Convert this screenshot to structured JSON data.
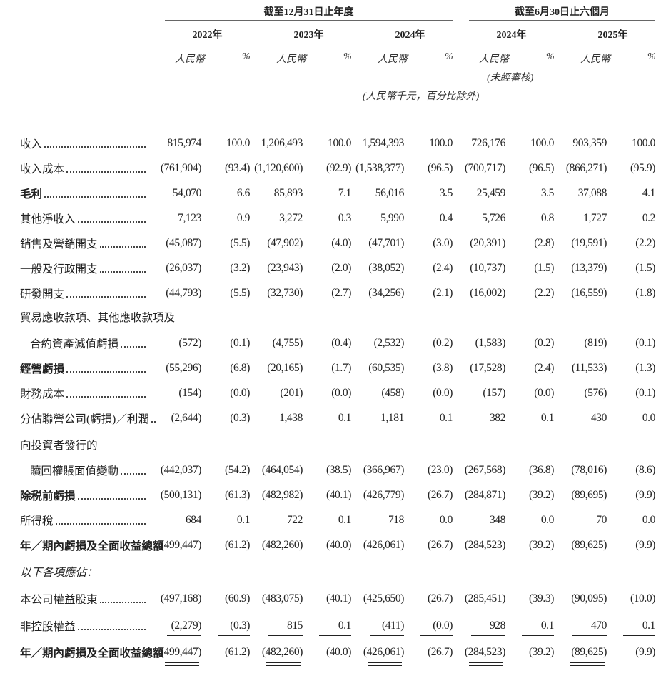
{
  "header": {
    "group_annual": "截至12月31日止年度",
    "group_interim": "截至6月30日止六個月",
    "years": [
      "2022年",
      "2023年",
      "2024年",
      "2024年",
      "2025年"
    ],
    "currency_label": "人民幣",
    "percent_label": "%",
    "unaudited_note": "(未經審核)",
    "unit_note": "(人民幣千元，百分比除外)"
  },
  "rows": [
    {
      "label": "收入",
      "values": [
        "815,974",
        "100.0",
        "1,206,493",
        "100.0",
        "1,594,393",
        "100.0",
        "726,176",
        "100.0",
        "903,359",
        "100.0"
      ]
    },
    {
      "label": "收入成本",
      "values": [
        "(761,904)",
        "(93.4)",
        "(1,120,600)",
        "(92.9)",
        "(1,538,377)",
        "(96.5)",
        "(700,717)",
        "(96.5)",
        "(866,271)",
        "(95.9)"
      ]
    },
    {
      "label": "毛利",
      "bold": true,
      "values": [
        "54,070",
        "6.6",
        "85,893",
        "7.1",
        "56,016",
        "3.5",
        "25,459",
        "3.5",
        "37,088",
        "4.1"
      ]
    },
    {
      "label": "其他淨收入",
      "values": [
        "7,123",
        "0.9",
        "3,272",
        "0.3",
        "5,990",
        "0.4",
        "5,726",
        "0.8",
        "1,727",
        "0.2"
      ]
    },
    {
      "label": "銷售及營銷開支",
      "values": [
        "(45,087)",
        "(5.5)",
        "(47,902)",
        "(4.0)",
        "(47,701)",
        "(3.0)",
        "(20,391)",
        "(2.8)",
        "(19,591)",
        "(2.2)"
      ]
    },
    {
      "label": "一般及行政開支",
      "values": [
        "(26,037)",
        "(3.2)",
        "(23,943)",
        "(2.0)",
        "(38,052)",
        "(2.4)",
        "(10,737)",
        "(1.5)",
        "(13,379)",
        "(1.5)"
      ]
    },
    {
      "label": "研發開支",
      "values": [
        "(44,793)",
        "(5.5)",
        "(32,730)",
        "(2.7)",
        "(34,256)",
        "(2.1)",
        "(16,002)",
        "(2.2)",
        "(16,559)",
        "(1.8)"
      ]
    },
    {
      "label": "貿易應收款項、其他應收款項及",
      "nolead": true,
      "values": []
    },
    {
      "label": "合約資產減值虧損",
      "indent": true,
      "values": [
        "(572)",
        "(0.1)",
        "(4,755)",
        "(0.4)",
        "(2,532)",
        "(0.2)",
        "(1,583)",
        "(0.2)",
        "(819)",
        "(0.1)"
      ]
    },
    {
      "label": "經營虧損",
      "bold": true,
      "values": [
        "(55,296)",
        "(6.8)",
        "(20,165)",
        "(1.7)",
        "(60,535)",
        "(3.8)",
        "(17,528)",
        "(2.4)",
        "(11,533)",
        "(1.3)"
      ]
    },
    {
      "label": "財務成本",
      "values": [
        "(154)",
        "(0.0)",
        "(201)",
        "(0.0)",
        "(458)",
        "(0.0)",
        "(157)",
        "(0.0)",
        "(576)",
        "(0.1)"
      ]
    },
    {
      "label": "分佔聯營公司(虧損)／利潤",
      "values": [
        "(2,644)",
        "(0.3)",
        "1,438",
        "0.1",
        "1,181",
        "0.1",
        "382",
        "0.1",
        "430",
        "0.0"
      ]
    },
    {
      "label": "向投資者發行的",
      "nolead": true,
      "values": []
    },
    {
      "label": "贖回權賬面值變動",
      "indent": true,
      "values": [
        "(442,037)",
        "(54.2)",
        "(464,054)",
        "(38.5)",
        "(366,967)",
        "(23.0)",
        "(267,568)",
        "(36.8)",
        "(78,016)",
        "(8.6)"
      ]
    },
    {
      "label": "除税前虧損",
      "bold": true,
      "values": [
        "(500,131)",
        "(61.3)",
        "(482,982)",
        "(40.1)",
        "(426,779)",
        "(26.7)",
        "(284,871)",
        "(39.2)",
        "(89,695)",
        "(9.9)"
      ]
    },
    {
      "label": "所得稅",
      "values": [
        "684",
        "0.1",
        "722",
        "0.1",
        "718",
        "0.0",
        "348",
        "0.0",
        "70",
        "0.0"
      ]
    },
    {
      "label": "年／期內虧損及全面收益總額",
      "bold": true,
      "nolead": true,
      "underline": "single-all",
      "values": [
        "(499,447)",
        "(61.2)",
        "(482,260)",
        "(40.0)",
        "(426,061)",
        "(26.7)",
        "(284,523)",
        "(39.2)",
        "(89,625)",
        "(9.9)"
      ]
    },
    {
      "label": "以下各項應佔：",
      "italic": true,
      "nolead": true,
      "values": []
    },
    {
      "label": "本公司權益股東",
      "values": [
        "(497,168)",
        "(60.9)",
        "(483,075)",
        "(40.1)",
        "(425,650)",
        "(26.7)",
        "(285,451)",
        "(39.3)",
        "(90,095)",
        "(10.0)"
      ]
    },
    {
      "label": "非控股權益",
      "underline": "single-all",
      "values": [
        "(2,279)",
        "(0.3)",
        "815",
        "0.1",
        "(411)",
        "(0.0)",
        "928",
        "0.1",
        "470",
        "0.1"
      ]
    },
    {
      "label": "年／期內虧損及全面收益總額",
      "bold": true,
      "nolead": true,
      "underline": "double-amounts",
      "values": [
        "(499,447)",
        "(61.2)",
        "(482,260)",
        "(40.0)",
        "(426,061)",
        "(26.7)",
        "(284,523)",
        "(39.2)",
        "(89,625)",
        "(9.9)"
      ]
    }
  ]
}
